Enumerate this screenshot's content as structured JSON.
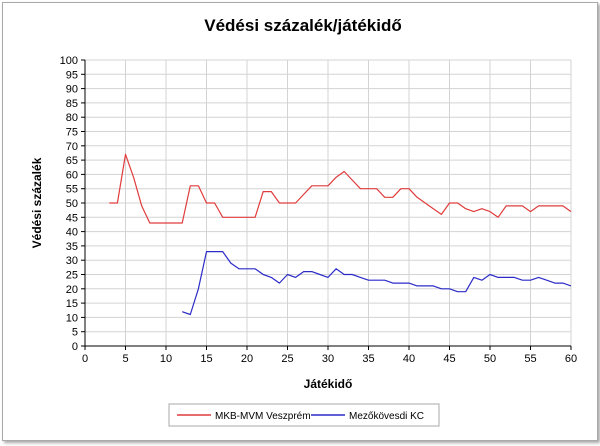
{
  "chart_data": {
    "type": "line",
    "title": "Védési százalék/játékidő",
    "xlabel": "Játékidő",
    "ylabel": "Védési százalék",
    "xlim": [
      0,
      60
    ],
    "ylim": [
      0,
      100
    ],
    "x_ticks": [
      0,
      5,
      10,
      15,
      20,
      25,
      30,
      35,
      40,
      45,
      50,
      55,
      60
    ],
    "y_ticks": [
      0,
      5,
      10,
      15,
      20,
      25,
      30,
      35,
      40,
      45,
      50,
      55,
      60,
      65,
      70,
      75,
      80,
      85,
      90,
      95,
      100
    ],
    "grid": true,
    "legend_position": "bottom",
    "series": [
      {
        "name": "MKB-MVM Veszprém",
        "color": "#e03c3c",
        "points": [
          [
            3,
            50
          ],
          [
            4,
            50
          ],
          [
            5,
            67
          ],
          [
            6,
            59
          ],
          [
            7,
            49
          ],
          [
            8,
            43
          ],
          [
            9,
            43
          ],
          [
            10,
            43
          ],
          [
            11,
            43
          ],
          [
            12,
            43
          ],
          [
            13,
            56
          ],
          [
            14,
            56
          ],
          [
            15,
            50
          ],
          [
            16,
            50
          ],
          [
            17,
            45
          ],
          [
            18,
            45
          ],
          [
            19,
            45
          ],
          [
            20,
            45
          ],
          [
            21,
            45
          ],
          [
            22,
            54
          ],
          [
            23,
            54
          ],
          [
            24,
            50
          ],
          [
            25,
            50
          ],
          [
            26,
            50
          ],
          [
            27,
            53
          ],
          [
            28,
            56
          ],
          [
            29,
            56
          ],
          [
            30,
            56
          ],
          [
            31,
            59
          ],
          [
            32,
            61
          ],
          [
            33,
            58
          ],
          [
            34,
            55
          ],
          [
            35,
            55
          ],
          [
            36,
            55
          ],
          [
            37,
            52
          ],
          [
            38,
            52
          ],
          [
            39,
            55
          ],
          [
            40,
            55
          ],
          [
            41,
            52
          ],
          [
            42,
            50
          ],
          [
            43,
            48
          ],
          [
            44,
            46
          ],
          [
            45,
            50
          ],
          [
            46,
            50
          ],
          [
            47,
            48
          ],
          [
            48,
            47
          ],
          [
            49,
            48
          ],
          [
            50,
            47
          ],
          [
            51,
            45
          ],
          [
            52,
            49
          ],
          [
            53,
            49
          ],
          [
            54,
            49
          ],
          [
            55,
            47
          ],
          [
            56,
            49
          ],
          [
            57,
            49
          ],
          [
            58,
            49
          ],
          [
            59,
            49
          ],
          [
            60,
            47
          ]
        ]
      },
      {
        "name": "Mezőkövesdi KC",
        "color": "#2b2bc8",
        "points": [
          [
            12,
            12
          ],
          [
            13,
            11
          ],
          [
            14,
            20
          ],
          [
            15,
            33
          ],
          [
            16,
            33
          ],
          [
            17,
            33
          ],
          [
            18,
            29
          ],
          [
            19,
            27
          ],
          [
            20,
            27
          ],
          [
            21,
            27
          ],
          [
            22,
            25
          ],
          [
            23,
            24
          ],
          [
            24,
            22
          ],
          [
            25,
            25
          ],
          [
            26,
            24
          ],
          [
            27,
            26
          ],
          [
            28,
            26
          ],
          [
            29,
            25
          ],
          [
            30,
            24
          ],
          [
            31,
            27
          ],
          [
            32,
            25
          ],
          [
            33,
            25
          ],
          [
            34,
            24
          ],
          [
            35,
            23
          ],
          [
            36,
            23
          ],
          [
            37,
            23
          ],
          [
            38,
            22
          ],
          [
            39,
            22
          ],
          [
            40,
            22
          ],
          [
            41,
            21
          ],
          [
            42,
            21
          ],
          [
            43,
            21
          ],
          [
            44,
            20
          ],
          [
            45,
            20
          ],
          [
            46,
            19
          ],
          [
            47,
            19
          ],
          [
            48,
            24
          ],
          [
            49,
            23
          ],
          [
            50,
            25
          ],
          [
            51,
            24
          ],
          [
            52,
            24
          ],
          [
            53,
            24
          ],
          [
            54,
            23
          ],
          [
            55,
            23
          ],
          [
            56,
            24
          ],
          [
            57,
            23
          ],
          [
            58,
            22
          ],
          [
            59,
            22
          ],
          [
            60,
            21
          ]
        ]
      }
    ]
  }
}
